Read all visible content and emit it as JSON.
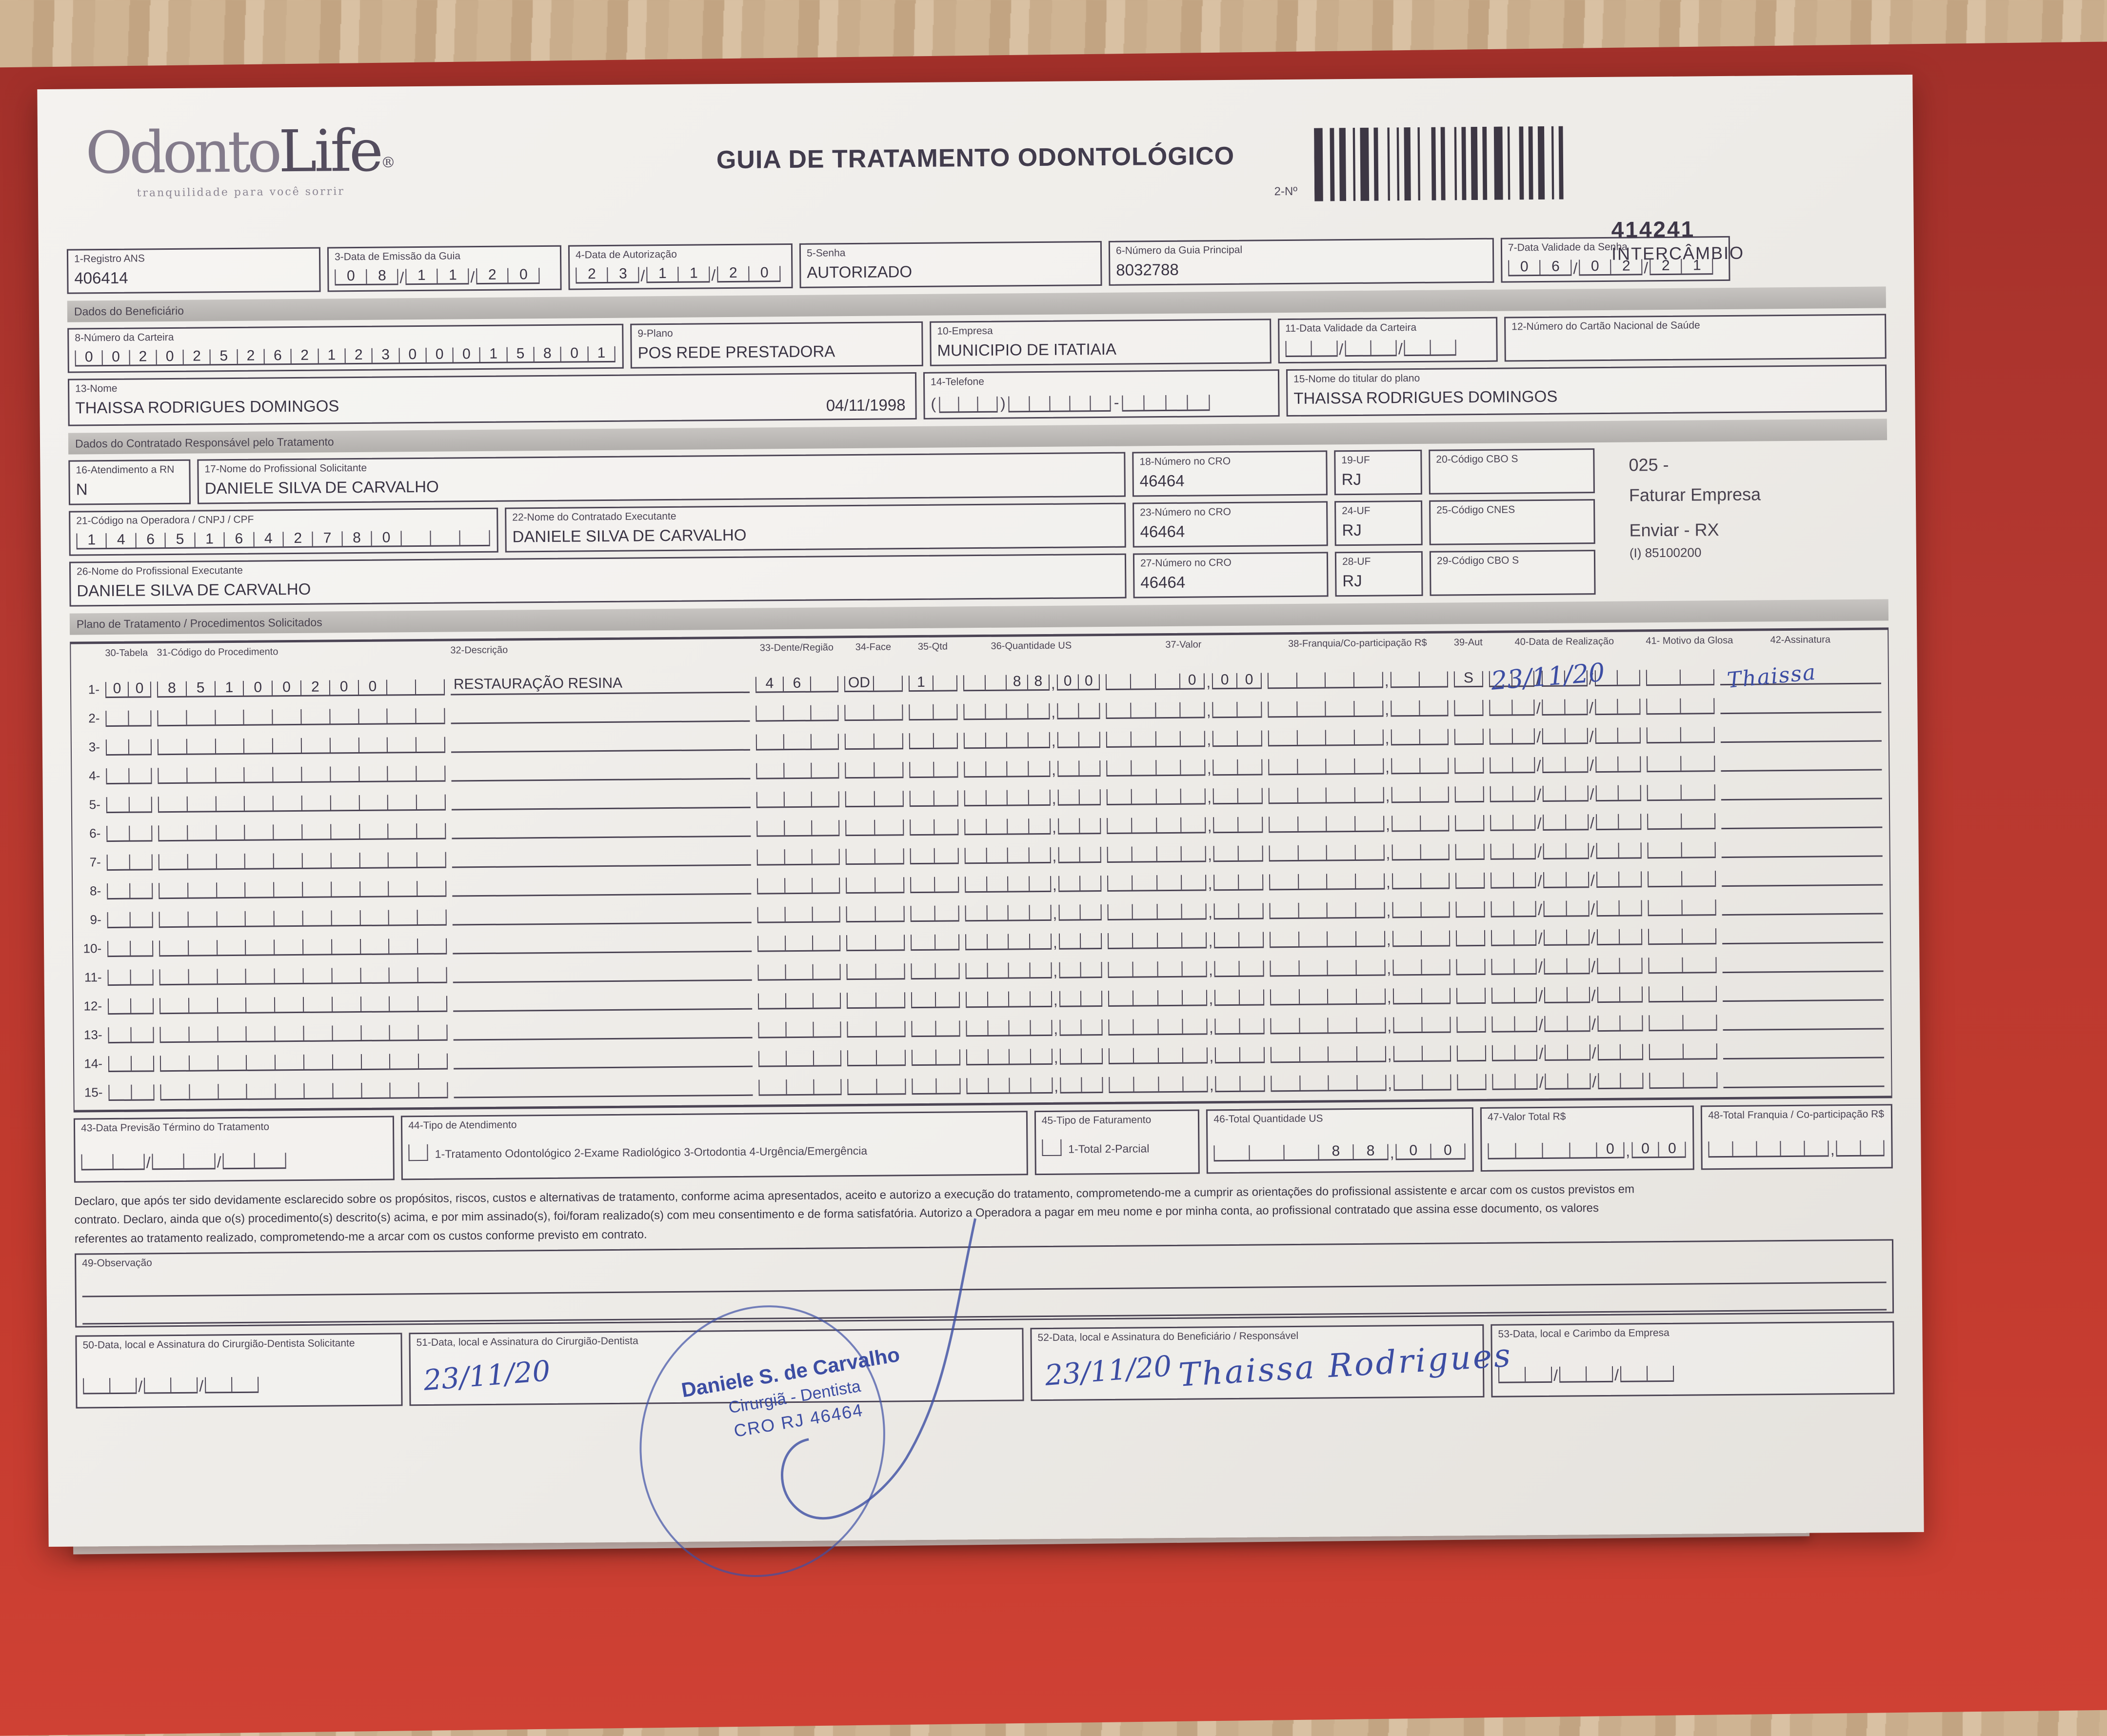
{
  "page": {
    "title": "GUIA DE TRATAMENTO ODONTOLÓGICO"
  },
  "logo": {
    "word1": "Odonto",
    "word2": "Life",
    "reg": "®",
    "tagline": "tranquilidade para você sorrir"
  },
  "barcode": {
    "label": "2-Nº",
    "number": "414241",
    "subtitle": "INTERCÂMBIO"
  },
  "sections": {
    "beneficiario": "Dados do Beneficiário",
    "contratado": "Dados do Contratado Responsável pelo Tratamento",
    "plano": "Plano de Tratamento / Procedimentos Solicitados"
  },
  "colors": {
    "folder_red": "#b5382e",
    "ink": "#4b4454",
    "pen_blue": "#3c4da3",
    "wood": "#cdb292"
  },
  "fields": {
    "f1": {
      "label": "1-Registro ANS",
      "value": "406414"
    },
    "f3": {
      "label": "3-Data de Emissão da Guia",
      "digits": [
        "0",
        "8",
        "1",
        "1",
        "2",
        "0"
      ]
    },
    "f4": {
      "label": "4-Data de Autorização",
      "digits": [
        "2",
        "3",
        "1",
        "1",
        "2",
        "0"
      ]
    },
    "f5": {
      "label": "5-Senha",
      "value": "AUTORIZADO"
    },
    "f6": {
      "label": "6-Número da Guia Principal",
      "value": "8032788"
    },
    "f7": {
      "label": "7-Data Validade da Senha",
      "digits": [
        "0",
        "6",
        "0",
        "2",
        "2",
        "1"
      ]
    },
    "f8": {
      "label": "8-Número da Carteira",
      "digits": [
        "0",
        "0",
        "2",
        "0",
        "2",
        "5",
        "2",
        "6",
        "2",
        "1",
        "2",
        "3",
        "0",
        "0",
        "0",
        "1",
        "5",
        "8",
        "0",
        "1"
      ]
    },
    "f9": {
      "label": "9-Plano",
      "value": "POS REDE PRESTADORA"
    },
    "f10": {
      "label": "10-Empresa",
      "value": "MUNICIPIO DE ITATIAIA"
    },
    "f11": {
      "label": "11-Data Validade da Carteira",
      "digits": [
        "",
        "",
        "",
        "",
        "",
        ""
      ]
    },
    "f12": {
      "label": "12-Número do Cartão Nacional de Saúde",
      "value": ""
    },
    "f13": {
      "label": "13-Nome",
      "value": "THAISSA RODRIGUES DOMINGOS",
      "birth": "04/11/1998"
    },
    "f14": {
      "label": "14-Telefone",
      "open": "(",
      "close": ")",
      "dash": "-",
      "ddd": [
        "",
        "",
        ""
      ],
      "p1": [
        "",
        "",
        "",
        "",
        ""
      ],
      "p2": [
        "",
        "",
        "",
        ""
      ]
    },
    "f15": {
      "label": "15-Nome do titular do plano",
      "value": "THAISSA RODRIGUES DOMINGOS"
    },
    "f16": {
      "label": "16-Atendimento a RN",
      "value": "N"
    },
    "f17": {
      "label": "17-Nome do Profissional Solicitante",
      "value": "DANIELE SILVA DE CARVALHO"
    },
    "f18": {
      "label": "18-Número no CRO",
      "value": "46464"
    },
    "f19": {
      "label": "19-UF",
      "value": "RJ"
    },
    "f20": {
      "label": "20-Código CBO S",
      "value": ""
    },
    "f21": {
      "label": "21-Código na Operadora / CNPJ / CPF",
      "digits": [
        "1",
        "4",
        "6",
        "5",
        "1",
        "6",
        "4",
        "2",
        "7",
        "8",
        "0",
        "",
        "",
        ""
      ]
    },
    "f22": {
      "label": "22-Nome do Contratado Executante",
      "value": "DANIELE SILVA DE CARVALHO"
    },
    "f23": {
      "label": "23-Número no CRO",
      "value": "46464"
    },
    "f24": {
      "label": "24-UF",
      "value": "RJ"
    },
    "f25": {
      "label": "25-Código CNES",
      "value": ""
    },
    "f26": {
      "label": "26-Nome do Profissional Executante",
      "value": "DANIELE SILVA DE CARVALHO"
    },
    "f27": {
      "label": "27-Número no CRO",
      "value": "46464"
    },
    "f28": {
      "label": "28-UF",
      "value": "RJ"
    },
    "f29": {
      "label": "29-Código CBO S",
      "value": ""
    },
    "f43": {
      "label": "43-Data Previsão Término do Tratamento",
      "digits": [
        "",
        "",
        "",
        "",
        "",
        ""
      ]
    },
    "f44": {
      "label": "44-Tipo de Atendimento",
      "options": "1-Tratamento Odontológico  2-Exame Radiológico  3-Ortodontia  4-Urgência/Emergência"
    },
    "f45": {
      "label": "45-Tipo de Faturamento",
      "options": "1-Total  2-Parcial"
    },
    "f46": {
      "label": "46-Total Quantidade US",
      "money": {
        "int": [
          "",
          "",
          "",
          "8",
          "8"
        ],
        "dec": [
          "0",
          "0"
        ]
      }
    },
    "f47": {
      "label": "47-Valor Total R$",
      "money": {
        "int": [
          "",
          "",
          "",
          "",
          "0"
        ],
        "dec": [
          "0",
          "0"
        ]
      }
    },
    "f48": {
      "label": "48-Total Franquia / Co-participação R$",
      "money": {
        "int": [
          "",
          "",
          "",
          "",
          ""
        ],
        "dec": [
          "",
          ""
        ]
      }
    },
    "f49": {
      "label": "49-Observação"
    },
    "f50": {
      "label": "50-Data, local e Assinatura do Cirurgião-Dentista Solicitante",
      "digits": [
        "",
        "",
        "",
        "",
        "",
        ""
      ]
    },
    "f51": {
      "label": "51-Data, local e Assinatura do Cirurgião-Dentista",
      "handwritten_date": "23/11/20"
    },
    "f52": {
      "label": "52-Data, local e Assinatura do Beneficiário / Responsável",
      "handwritten_date": "23/11/20",
      "signature": "Thaissa Rodrigues"
    },
    "f53": {
      "label": "53-Data, local e Carimbo da Empresa",
      "digits": [
        "",
        "",
        "",
        "",
        "",
        ""
      ]
    }
  },
  "side_note": {
    "line1": "025 -",
    "line2": "Faturar Empresa",
    "line3": "Enviar - RX",
    "line4": "(I) 85100200"
  },
  "stamp": {
    "name": "Daniele S. de Carvalho",
    "role": "Cirurgiã - Dentista",
    "cro": "CRO RJ 46464"
  },
  "declaration": {
    "line1": "Declaro, que após ter sido devidamente esclarecido sobre os propósitos, riscos, custos e alternativas de tratamento, conforme acima apresentados, aceito e autorizo a execução do tratamento, comprometendo-me a cumprir as orientações do profissional assistente e arcar com os custos previstos em",
    "line2": "contrato. Declaro, ainda que o(s) procedimento(s) descrito(s) acima, e por mim assinado(s), foi/foram realizado(s) com meu consentimento e de forma satisfatória. Autorizo a Operadora a pagar em meu nome e por minha conta, ao profissional contratado que assina esse documento, os valores",
    "line3": "referentes ao tratamento realizado, comprometendo-me a arcar com os custos conforme previsto em contrato."
  },
  "table": {
    "headers": {
      "tabela": "30-Tabela",
      "codigo": "31-Código do Procedimento",
      "desc": "32-Descrição",
      "dente": "33-Dente/Região",
      "face": "34-Face",
      "qtd": "35-Qtd",
      "qus": "36-Quantidade US",
      "valor": "37-Valor",
      "franq": "38-Franquia/Co-participação R$",
      "aut": "39-Aut",
      "data": "40-Data de Realização",
      "motivo": "41- Motivo da Glosa",
      "ass": "42-Assinatura"
    },
    "rows": [
      {
        "num": "1-",
        "tabela": [
          "0",
          "0"
        ],
        "codigo": [
          "8",
          "5",
          "1",
          "0",
          "0",
          "2",
          "0",
          "0",
          "",
          ""
        ],
        "desc": "RESTAURAÇÃO RESINA",
        "dente": [
          "4",
          "6",
          ""
        ],
        "face": [
          "OD",
          ""
        ],
        "qtd": [
          "1",
          ""
        ],
        "qus": {
          "int": [
            "",
            "",
            "8",
            "8"
          ],
          "dec": [
            "0",
            "0"
          ]
        },
        "valor": {
          "int": [
            "",
            "",
            "",
            "0"
          ],
          "dec": [
            "0",
            "0"
          ]
        },
        "franq": {
          "int": [
            "",
            "",
            "",
            ""
          ],
          "dec": [
            "",
            ""
          ]
        },
        "aut": [
          "S"
        ],
        "data_hand": "23/11/20",
        "ass_hand": "Thaissa"
      },
      {
        "num": "2-"
      },
      {
        "num": "3-"
      },
      {
        "num": "4-"
      },
      {
        "num": "5-"
      },
      {
        "num": "6-"
      },
      {
        "num": "7-"
      },
      {
        "num": "8-"
      },
      {
        "num": "9-"
      },
      {
        "num": "10-"
      },
      {
        "num": "11-"
      },
      {
        "num": "12-"
      },
      {
        "num": "13-"
      },
      {
        "num": "14-"
      },
      {
        "num": "15-"
      }
    ]
  }
}
